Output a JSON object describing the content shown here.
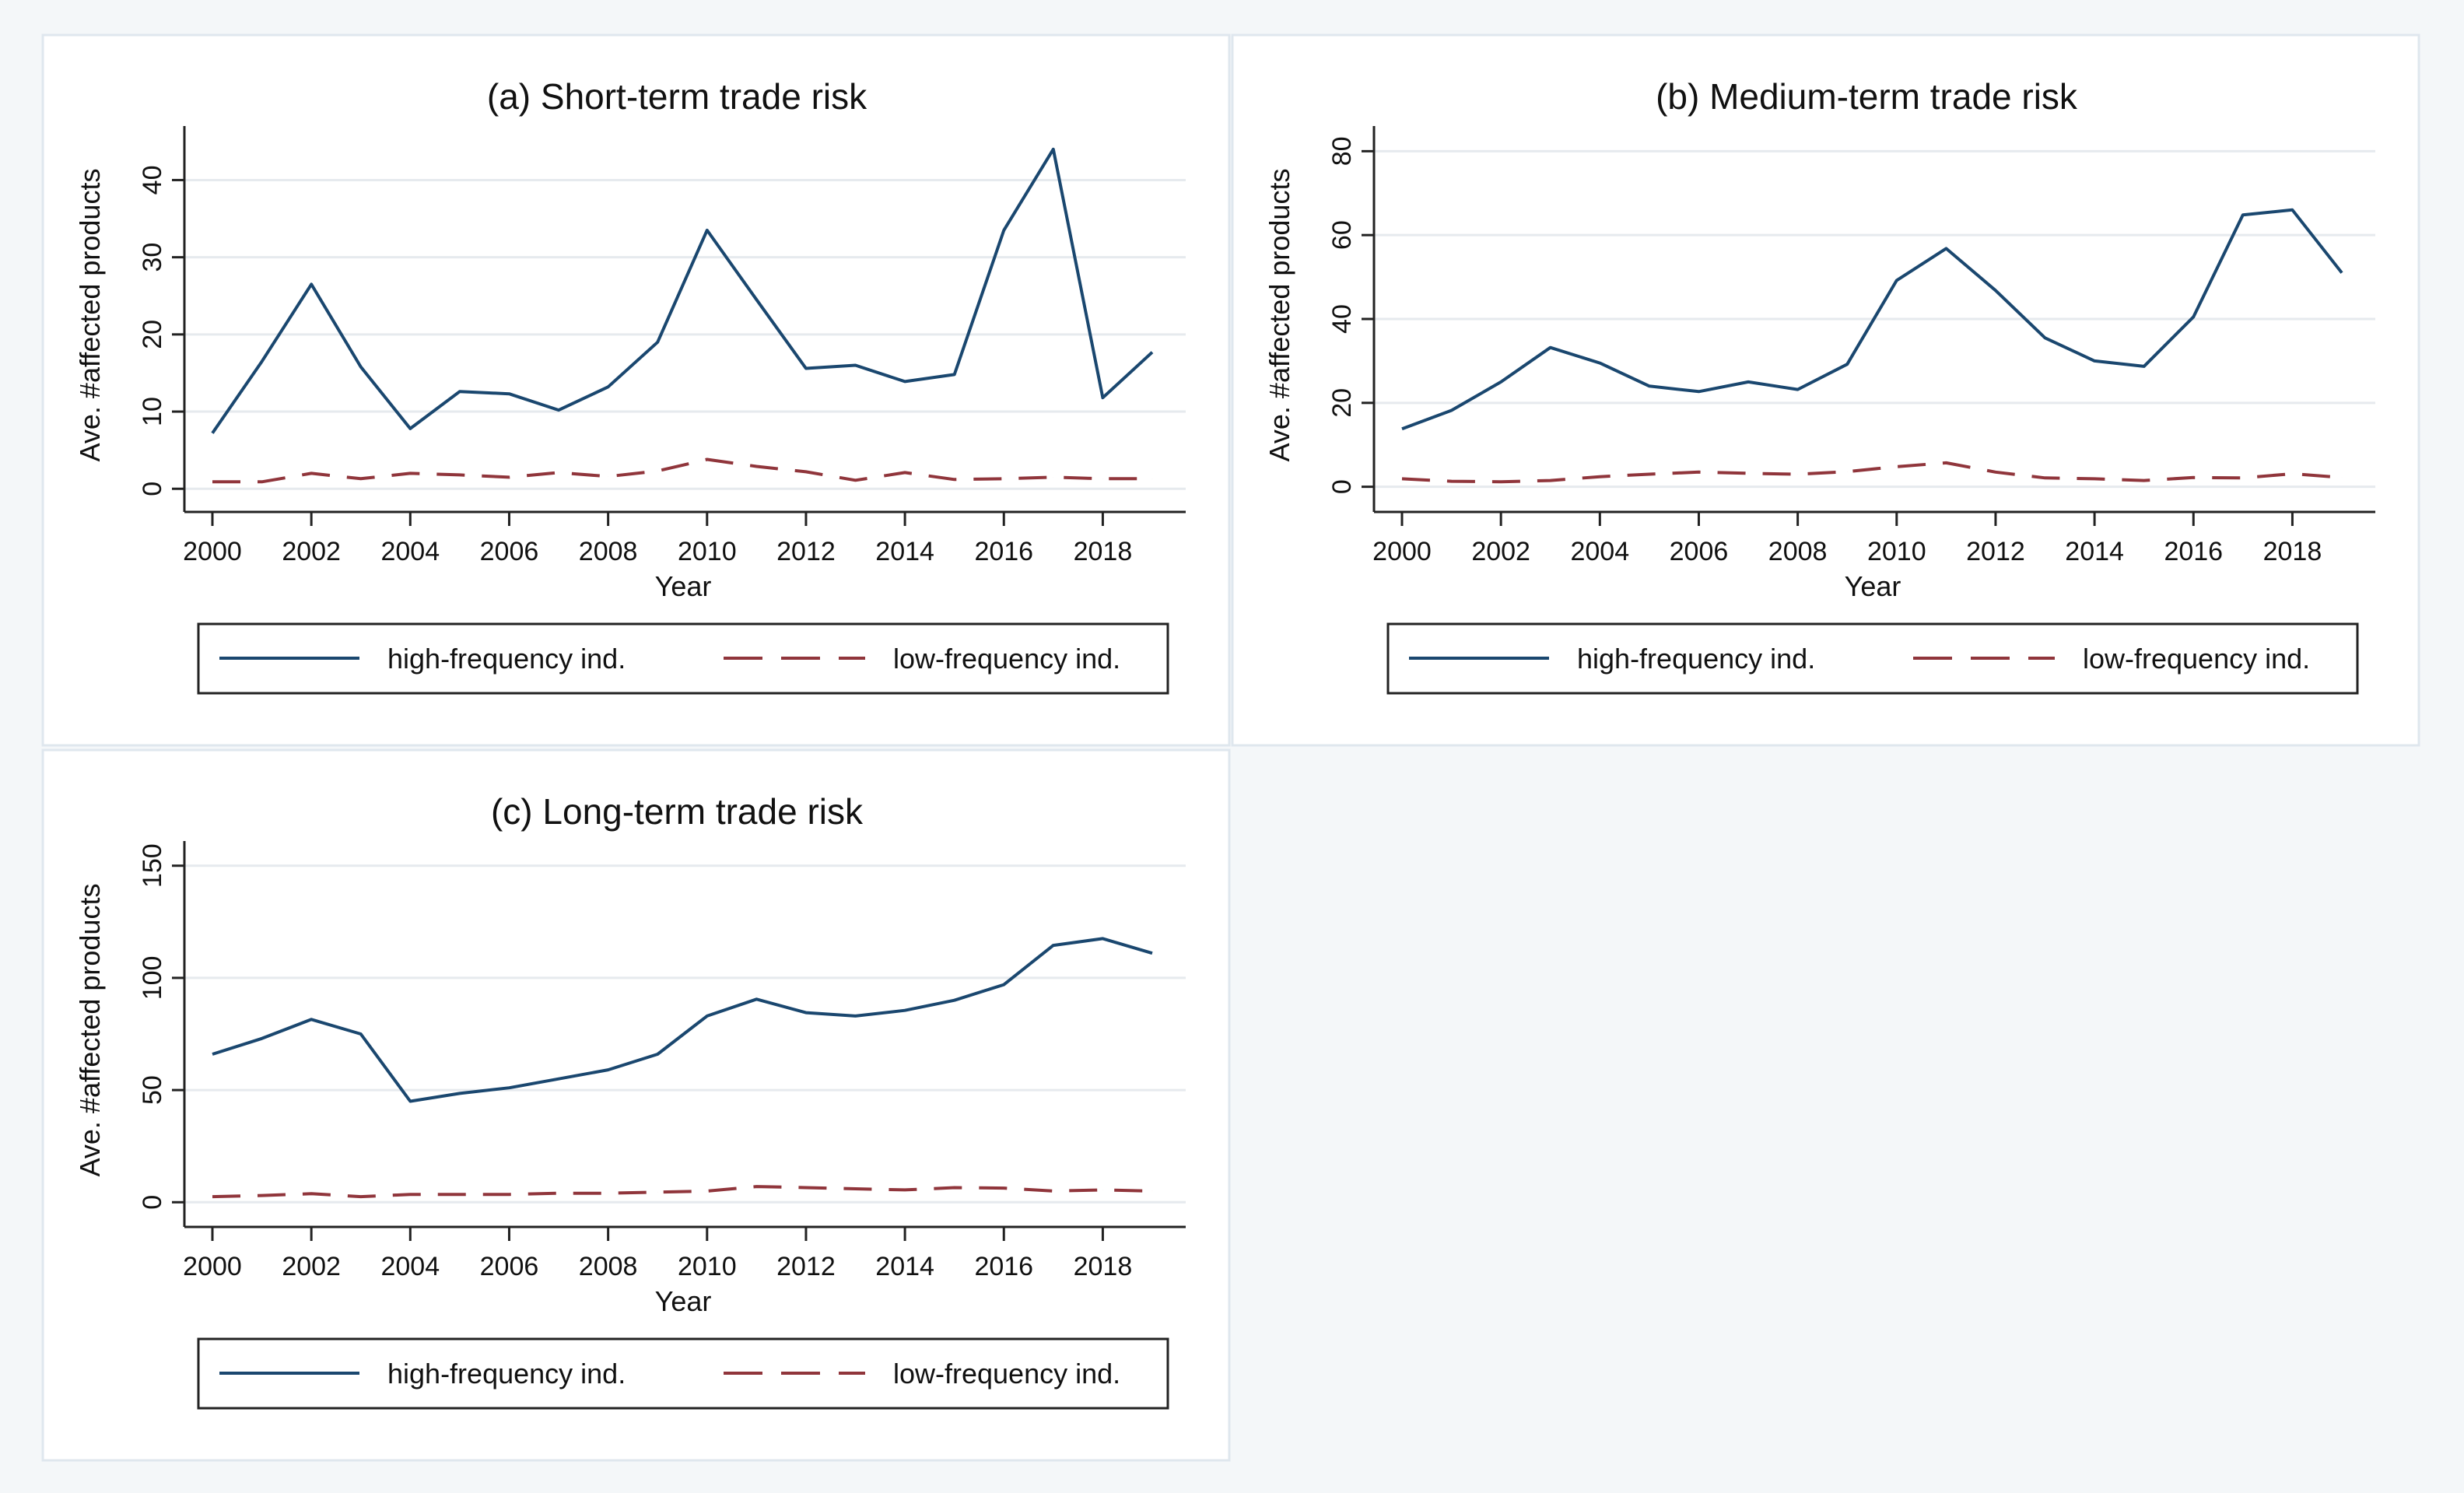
{
  "colors": {
    "high": "#1a476f",
    "low": "#90353b",
    "grid": "#e6eaee",
    "panel_border": "#dfe7ee"
  },
  "chart_data": [
    {
      "type": "line",
      "title": "(a) Short-term trade risk",
      "xlabel": "Year",
      "ylabel": "Ave. #affected products",
      "x": [
        2000,
        2001,
        2002,
        2003,
        2004,
        2005,
        2006,
        2007,
        2008,
        2009,
        2010,
        2011,
        2012,
        2013,
        2014,
        2015,
        2016,
        2017,
        2018,
        2019
      ],
      "xticks": [
        "2000",
        "2002",
        "2004",
        "2006",
        "2008",
        "2010",
        "2012",
        "2014",
        "2016",
        "2018"
      ],
      "yticks": [
        "0",
        "10",
        "20",
        "30",
        "40"
      ],
      "ylim": [
        -3,
        47
      ],
      "grid": true,
      "legend_position": "bottom",
      "series": [
        {
          "name": "high-frequency ind.",
          "style": "solid",
          "values": [
            7.2,
            16.5,
            26.5,
            15.8,
            7.8,
            12.6,
            12.3,
            10.2,
            13.2,
            19.0,
            33.5,
            24.5,
            15.6,
            16.0,
            13.9,
            14.8,
            33.5,
            44.0,
            11.8,
            17.7
          ]
        },
        {
          "name": "low-frequency ind.",
          "style": "dashed",
          "values": [
            0.9,
            0.9,
            2.0,
            1.3,
            2.0,
            1.8,
            1.5,
            2.1,
            1.6,
            2.3,
            3.8,
            2.9,
            2.2,
            1.1,
            2.1,
            1.2,
            1.3,
            1.5,
            1.3,
            1.3
          ]
        }
      ]
    },
    {
      "type": "line",
      "title": "(b) Medium-term trade risk",
      "xlabel": "Year",
      "ylabel": "Ave. #affected products",
      "x": [
        2000,
        2001,
        2002,
        2003,
        2004,
        2005,
        2006,
        2007,
        2008,
        2009,
        2010,
        2011,
        2012,
        2013,
        2014,
        2015,
        2016,
        2017,
        2018,
        2019
      ],
      "xticks": [
        "2000",
        "2002",
        "2004",
        "2006",
        "2008",
        "2010",
        "2012",
        "2014",
        "2016",
        "2018"
      ],
      "yticks": [
        "0",
        "20",
        "40",
        "60",
        "80"
      ],
      "ylim": [
        -6,
        86
      ],
      "grid": true,
      "legend_position": "bottom",
      "series": [
        {
          "name": "high-frequency ind.",
          "style": "solid",
          "values": [
            13.8,
            18.2,
            25.0,
            33.2,
            29.5,
            24.0,
            22.7,
            25.0,
            23.2,
            29.2,
            49.2,
            56.8,
            46.8,
            35.5,
            30.0,
            28.7,
            40.5,
            64.8,
            66.0,
            51.0
          ]
        },
        {
          "name": "low-frequency ind.",
          "style": "dashed",
          "values": [
            1.9,
            1.3,
            1.2,
            1.5,
            2.4,
            3.0,
            3.5,
            3.2,
            3.0,
            3.6,
            4.8,
            5.7,
            3.5,
            2.1,
            1.9,
            1.5,
            2.2,
            2.1,
            3.1,
            2.2
          ]
        }
      ]
    },
    {
      "type": "line",
      "title": "(c) Long-term trade risk",
      "xlabel": "Year",
      "ylabel": "Ave. #affected products",
      "x": [
        2000,
        2001,
        2002,
        2003,
        2004,
        2005,
        2006,
        2007,
        2008,
        2009,
        2010,
        2011,
        2012,
        2013,
        2014,
        2015,
        2016,
        2017,
        2018,
        2019
      ],
      "xticks": [
        "2000",
        "2002",
        "2004",
        "2006",
        "2008",
        "2010",
        "2012",
        "2014",
        "2016",
        "2018"
      ],
      "yticks": [
        "0",
        "50",
        "100",
        "150"
      ],
      "ylim": [
        -11,
        161
      ],
      "grid": true,
      "legend_position": "bottom",
      "series": [
        {
          "name": "high-frequency ind.",
          "style": "solid",
          "values": [
            66,
            73,
            81.5,
            75,
            45,
            48.5,
            51,
            55,
            59,
            66,
            83,
            90.5,
            84.5,
            83,
            85.5,
            90,
            97,
            114.5,
            117.5,
            111
          ]
        },
        {
          "name": "low-frequency ind.",
          "style": "dashed",
          "values": [
            2.5,
            3.0,
            3.8,
            2.5,
            3.5,
            3.5,
            3.5,
            4.0,
            4.0,
            4.5,
            5.0,
            7.0,
            6.5,
            6.0,
            5.5,
            6.5,
            6.3,
            5.0,
            5.5,
            5.0
          ]
        }
      ]
    }
  ]
}
